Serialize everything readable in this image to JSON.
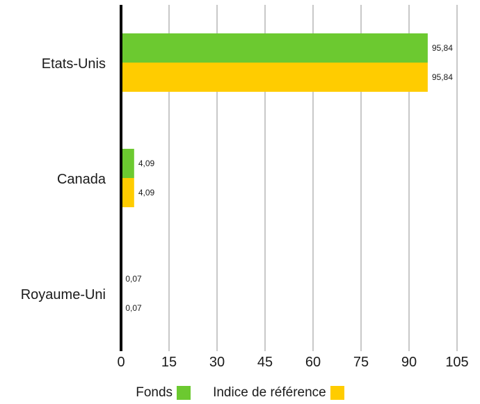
{
  "chart_data": {
    "type": "bar",
    "orientation": "horizontal",
    "categories": [
      "Etats-Unis",
      "Canada",
      "Royaume-Uni"
    ],
    "series": [
      {
        "name": "Fonds",
        "values": [
          95.84,
          4.09,
          0.07
        ],
        "labels": [
          "95,84",
          "4,09",
          "0,07"
        ],
        "color": "#6cc930"
      },
      {
        "name": "Indice de référence",
        "values": [
          95.84,
          4.09,
          0.07
        ],
        "labels": [
          "95,84",
          "4,09",
          "0,07"
        ],
        "color": "#ffcc00"
      }
    ],
    "xlim": [
      0,
      105
    ],
    "x_ticks": [
      "0",
      "15",
      "30",
      "45",
      "60",
      "75",
      "90",
      "105"
    ],
    "grid": true,
    "legend_position": "bottom-center",
    "title": "",
    "xlabel": "",
    "ylabel": ""
  }
}
